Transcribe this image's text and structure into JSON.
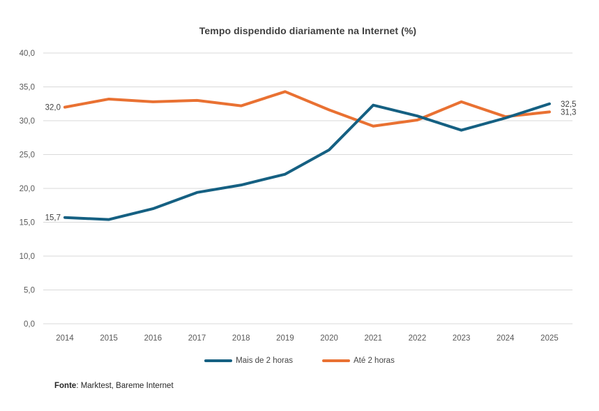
{
  "title": "Tempo dispendido diariamente na Internet (%)",
  "source": {
    "label": "Fonte",
    "text": ": Marktest, Bareme Internet"
  },
  "chart_data": {
    "type": "line",
    "title": "Tempo dispendido diariamente na Internet (%)",
    "categories": [
      "2014",
      "2015",
      "2016",
      "2017",
      "2018",
      "2019",
      "2020",
      "2021",
      "2022",
      "2023",
      "2024",
      "2025"
    ],
    "series": [
      {
        "name": "Mais de 2 horas",
        "color": "#156082",
        "values": [
          15.7,
          15.4,
          17.0,
          19.4,
          20.5,
          22.1,
          25.7,
          32.3,
          30.7,
          28.6,
          30.4,
          32.5
        ],
        "first_label": "15,7",
        "last_label": "32,5"
      },
      {
        "name": "Até 2 horas",
        "color": "#E97132",
        "values": [
          32.0,
          33.2,
          32.8,
          33.0,
          32.2,
          34.3,
          31.6,
          29.2,
          30.1,
          32.8,
          30.6,
          31.3
        ],
        "first_label": "32,0",
        "last_label": "31,3"
      }
    ],
    "xlabel": "",
    "ylabel": "",
    "ylim": [
      0,
      40
    ],
    "ytick_step": 5,
    "grid": true,
    "legend_position": "bottom",
    "decimal_separator": ","
  }
}
